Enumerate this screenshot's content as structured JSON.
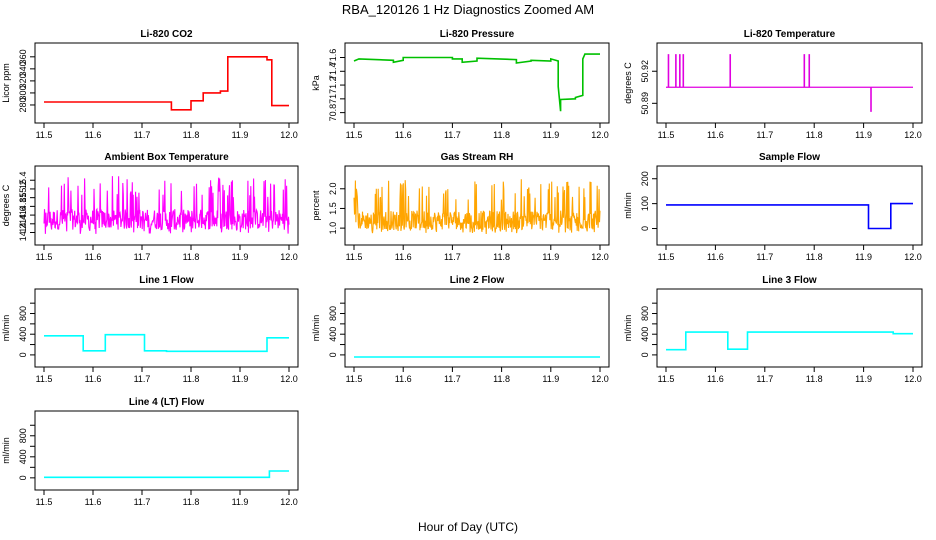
{
  "figure": {
    "title": "RBA_120126  1 Hz Diagnostics Zoomed AM",
    "xlabel": "Hour of Day (UTC)"
  },
  "chart_data": [
    {
      "type": "line",
      "title": "Li-820 CO2",
      "ylabel": "Licor ppm",
      "color": "#ff0000",
      "xlim": [
        11.5,
        12.0
      ],
      "ylim": [
        265,
        368
      ],
      "xticks": [
        "11.5",
        "11.6",
        "11.7",
        "11.8",
        "11.9",
        "12.0"
      ],
      "yticks": [
        280,
        300,
        320,
        340,
        360
      ],
      "series": [
        {
          "name": "CO2",
          "kind": "step",
          "x": [
            11.5,
            11.76,
            11.76,
            11.8,
            11.8,
            11.825,
            11.825,
            11.86,
            11.86,
            11.875,
            11.875,
            11.955,
            11.955,
            11.965,
            11.965,
            12.0
          ],
          "y": [
            285,
            285,
            272,
            272,
            287,
            287,
            300,
            300,
            303,
            303,
            360,
            360,
            355,
            355,
            279,
            279
          ]
        }
      ]
    },
    {
      "type": "line",
      "title": "Li-820 Pressure",
      "ylabel": "kPa",
      "color": "#00c000",
      "xlim": [
        11.5,
        12.0
      ],
      "ylim": [
        70.78,
        71.68
      ],
      "xticks": [
        "11.5",
        "11.6",
        "11.7",
        "11.8",
        "11.9",
        "12.0"
      ],
      "yticks": [
        70.8,
        71.0,
        71.2,
        71.4,
        71.6
      ],
      "series": [
        {
          "name": "Pressure",
          "kind": "step",
          "x": [
            11.5,
            11.51,
            11.51,
            11.58,
            11.58,
            11.6,
            11.6,
            11.7,
            11.7,
            11.72,
            11.72,
            11.75,
            11.75,
            11.83,
            11.83,
            11.86,
            11.86,
            11.9,
            11.9,
            11.915,
            11.915,
            11.92,
            11.92,
            11.95,
            11.95,
            11.965,
            11.965,
            11.97,
            11.97,
            12.0
          ],
          "y": [
            71.55,
            71.58,
            71.58,
            71.56,
            71.53,
            71.56,
            71.6,
            71.6,
            71.58,
            71.58,
            71.53,
            71.55,
            71.59,
            71.57,
            71.52,
            71.55,
            71.56,
            71.55,
            71.58,
            71.55,
            71.18,
            70.82,
            70.99,
            71.0,
            71.02,
            71.05,
            71.58,
            71.66,
            71.65,
            71.65
          ]
        }
      ]
    },
    {
      "type": "line",
      "title": "Li-820 Temperature",
      "ylabel": "degrees C",
      "color": "#e000e0",
      "xlim": [
        11.5,
        12.0
      ],
      "ylim": [
        50.88,
        50.938
      ],
      "xticks": [
        "11.5",
        "11.6",
        "11.7",
        "11.8",
        "11.9",
        "12.0"
      ],
      "yticks": [
        50.89,
        50.92
      ],
      "yticklabels": [
        "50.89",
        "50.92"
      ],
      "series": [
        {
          "name": "Temperature",
          "kind": "spikes",
          "base": 50.905,
          "spikes": [
            [
              11.505,
              50.936
            ],
            [
              11.52,
              50.936
            ],
            [
              11.528,
              50.936
            ],
            [
              11.535,
              50.936
            ],
            [
              11.63,
              50.936
            ],
            [
              11.78,
              50.936
            ],
            [
              11.79,
              50.936
            ],
            [
              11.915,
              50.882
            ]
          ]
        }
      ]
    },
    {
      "type": "line",
      "title": "Ambient Box Temperature",
      "ylabel": "degrees C",
      "color": "#ff00ff",
      "xlim": [
        11.5,
        12.0
      ],
      "ylim": [
        14.12,
        15.52
      ],
      "xticks": [
        "11.5",
        "11.6",
        "11.7",
        "11.8",
        "11.9",
        "12.0"
      ],
      "yticks": [
        14.2,
        14.4,
        14.6,
        14.8,
        15.0,
        15.2,
        15.4
      ],
      "series": [
        {
          "name": "Box Temp",
          "kind": "noise",
          "mean": 14.5,
          "lo": 14.15,
          "hi": 15.5
        }
      ]
    },
    {
      "type": "line",
      "title": "Gas Stream RH",
      "ylabel": "percent",
      "color": "#ffa500",
      "xlim": [
        11.5,
        12.0
      ],
      "ylim": [
        0.8,
        2.35
      ],
      "xticks": [
        "11.5",
        "11.6",
        "11.7",
        "11.8",
        "11.9",
        "12.0"
      ],
      "yticks": [
        1.0,
        1.5,
        2.0
      ],
      "yticklabels": [
        "1.0",
        "1.5",
        "2.0"
      ],
      "series": [
        {
          "name": "RH",
          "kind": "noise",
          "mean": 1.2,
          "lo": 0.85,
          "hi": 2.25
        }
      ]
    },
    {
      "type": "line",
      "title": "Sample Flow",
      "ylabel": "ml/min",
      "color": "#0000ff",
      "xlim": [
        11.5,
        12.0
      ],
      "ylim": [
        -30,
        215
      ],
      "xticks": [
        "11.5",
        "11.6",
        "11.7",
        "11.8",
        "11.9",
        "12.0"
      ],
      "yticks": [
        0,
        100,
        200
      ],
      "series": [
        {
          "name": "Sample Flow",
          "kind": "step",
          "x": [
            11.5,
            11.91,
            11.91,
            11.955,
            11.955,
            12.0
          ],
          "y": [
            95,
            95,
            0,
            0,
            100,
            100
          ]
        }
      ]
    },
    {
      "type": "line",
      "title": "Line 1 Flow",
      "ylabel": "ml/min",
      "color": "#00ffff",
      "xlim": [
        11.5,
        12.0
      ],
      "ylim": [
        -60,
        1100
      ],
      "xticks": [
        "11.5",
        "11.6",
        "11.7",
        "11.8",
        "11.9",
        "12.0"
      ],
      "yticks": [
        0,
        200,
        400,
        600,
        800,
        1000
      ],
      "yticklabels": [
        "0",
        "400",
        "800"
      ],
      "series": [
        {
          "name": "Line 1",
          "kind": "step",
          "x": [
            11.5,
            11.58,
            11.58,
            11.625,
            11.625,
            11.705,
            11.705,
            11.75,
            11.75,
            11.955,
            11.955,
            12.0
          ],
          "y": [
            370,
            370,
            80,
            80,
            390,
            390,
            80,
            80,
            70,
            70,
            330,
            330
          ]
        }
      ]
    },
    {
      "type": "line",
      "title": "Line 2 Flow",
      "ylabel": "ml/min",
      "color": "#00ffff",
      "xlim": [
        11.5,
        12.0
      ],
      "ylim": [
        -60,
        1100
      ],
      "xticks": [
        "11.5",
        "11.6",
        "11.7",
        "11.8",
        "11.9",
        "12.0"
      ],
      "yticks": [
        0,
        200,
        400,
        600,
        800,
        1000
      ],
      "yticklabels": [
        "0",
        "400",
        "800"
      ],
      "series": [
        {
          "name": "Line 2",
          "kind": "step",
          "x": [
            11.5,
            12.0
          ],
          "y": [
            -40,
            -40
          ]
        }
      ]
    },
    {
      "type": "line",
      "title": "Line 3 Flow",
      "ylabel": "ml/min",
      "color": "#00ffff",
      "xlim": [
        11.5,
        12.0
      ],
      "ylim": [
        -60,
        1100
      ],
      "xticks": [
        "11.5",
        "11.6",
        "11.7",
        "11.8",
        "11.9",
        "12.0"
      ],
      "yticks": [
        0,
        200,
        400,
        600,
        800,
        1000
      ],
      "yticklabels": [
        "0",
        "400",
        "800"
      ],
      "series": [
        {
          "name": "Line 3",
          "kind": "step",
          "x": [
            11.5,
            11.54,
            11.54,
            11.625,
            11.625,
            11.665,
            11.665,
            11.96,
            11.96,
            12.0
          ],
          "y": [
            100,
            100,
            440,
            440,
            110,
            110,
            440,
            440,
            410,
            410
          ]
        }
      ]
    },
    {
      "type": "line",
      "title": "Line 4 (LT) Flow",
      "ylabel": "ml/min",
      "color": "#00ffff",
      "xlim": [
        11.5,
        12.0
      ],
      "ylim": [
        -60,
        1100
      ],
      "xticks": [
        "11.5",
        "11.6",
        "11.7",
        "11.8",
        "11.9",
        "12.0"
      ],
      "yticks": [
        0,
        200,
        400,
        600,
        800,
        1000
      ],
      "yticklabels": [
        "0",
        "400",
        "800"
      ],
      "series": [
        {
          "name": "Line 4",
          "kind": "step",
          "x": [
            11.5,
            11.96,
            11.96,
            12.0
          ],
          "y": [
            10,
            10,
            130,
            130
          ]
        }
      ]
    }
  ]
}
